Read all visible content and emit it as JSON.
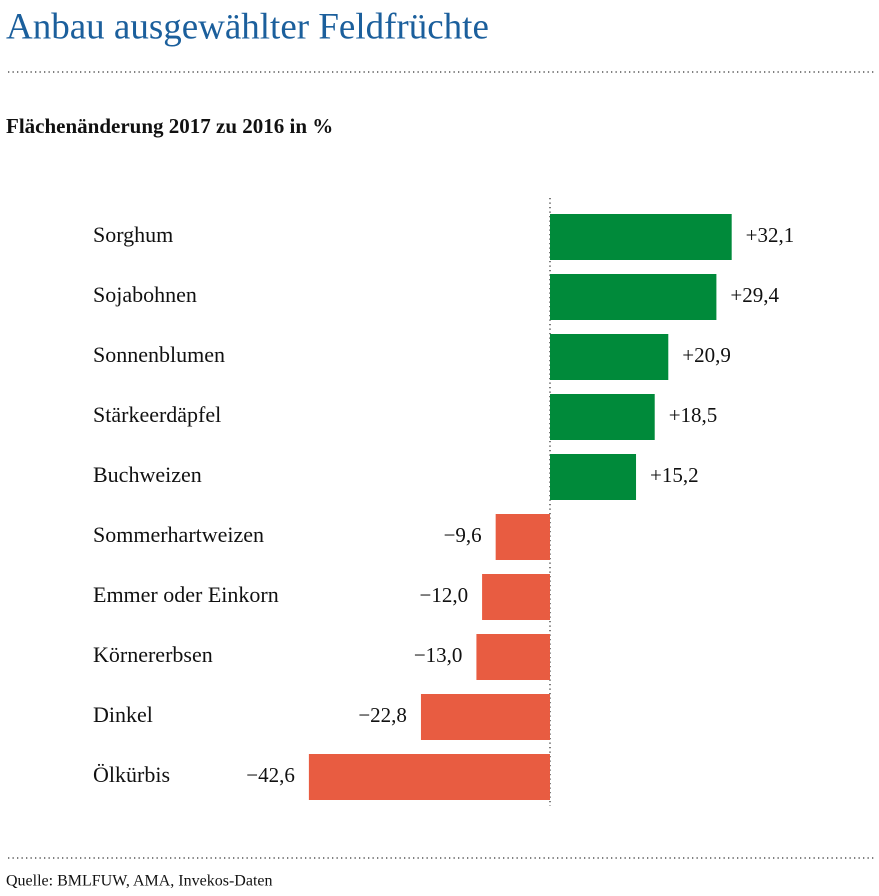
{
  "chart_data": {
    "type": "bar",
    "orientation": "horizontal",
    "title": "Anbau ausgewählter Feldfrüchte",
    "subtitle": "Flächenänderung 2017 zu 2016 in %",
    "source": "Quelle: BMLFUW, AMA, Invekos-Daten",
    "categories": [
      "Sorghum",
      "Sojabohnen",
      "Sonnenblumen",
      "Stärkeerdäpfel",
      "Buchweizen",
      "Sommerhartweizen",
      "Emmer oder Einkorn",
      "Körnererbsen",
      "Dinkel",
      "Ölkürbis"
    ],
    "values": [
      32.1,
      29.4,
      20.9,
      18.5,
      15.2,
      -9.6,
      -12.0,
      -13.0,
      -22.8,
      -42.6
    ],
    "value_labels": [
      "+32,1",
      "+29,4",
      "+20,9",
      "+18,5",
      "+15,2",
      "−9,6",
      "−12,0",
      "−13,0",
      "−22,8",
      "−42,6"
    ],
    "color_positive": "#008a3a",
    "color_negative": "#e85c41"
  }
}
